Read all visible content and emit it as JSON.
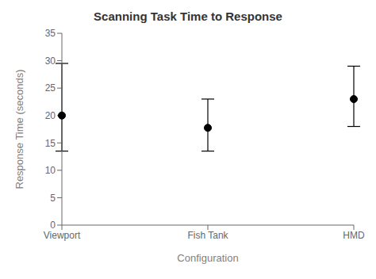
{
  "chart_data": {
    "type": "scatter",
    "title": "Scanning Task Time to Response",
    "xlabel": "Configuration",
    "ylabel": "Response Time (seconds)",
    "categories": [
      "Viewport",
      "Fish Tank",
      "HMD"
    ],
    "values": [
      20.0,
      17.75,
      23.0
    ],
    "errors_lower": [
      6.5,
      4.25,
      5.0
    ],
    "errors_upper": [
      9.5,
      5.25,
      6.0
    ],
    "ylim": [
      0,
      35
    ],
    "yticks": [
      0,
      5,
      10,
      15,
      20,
      25,
      30,
      35
    ],
    "color": "black",
    "marker": "circle",
    "grid": false
  }
}
